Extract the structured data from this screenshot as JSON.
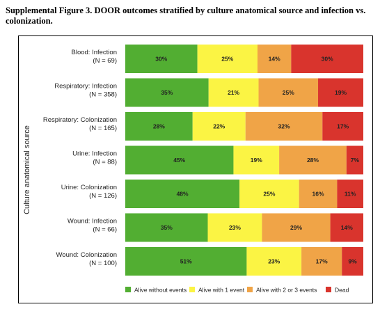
{
  "figure_title": "Supplemental Figure 3. DOOR outcomes stratified by culture anatomical source and infection vs. colonization.",
  "chart_data": {
    "type": "bar",
    "orientation": "horizontal",
    "stacked": true,
    "percent_stacked": true,
    "xlim": [
      0,
      100
    ],
    "ylabel": "Culture anatomical source",
    "legend_position": "bottom",
    "categories": [
      [
        "Blood: Infection",
        "(N = 69)"
      ],
      [
        "Respiratory: Infection",
        "(N = 358)"
      ],
      [
        "Respiratory: Colonization",
        "(N = 165)"
      ],
      [
        "Urine: Infection",
        "(N = 88)"
      ],
      [
        "Urine: Colonization",
        "(N = 126)"
      ],
      [
        "Wound: Infection",
        "(N = 66)"
      ],
      [
        "Wound: Colonization",
        "(N = 100)"
      ]
    ],
    "series": [
      {
        "name": "Alive without events",
        "color": "#52ae32",
        "values": [
          30,
          35,
          28,
          45,
          48,
          35,
          51
        ]
      },
      {
        "name": "Alive with 1 event",
        "color": "#fbf444",
        "values": [
          25,
          21,
          22,
          19,
          25,
          23,
          23
        ]
      },
      {
        "name": "Alive with 2 or 3 events",
        "color": "#f0a447",
        "values": [
          14,
          25,
          32,
          28,
          16,
          29,
          17
        ]
      },
      {
        "name": "Dead",
        "color": "#d9342d",
        "values": [
          30,
          19,
          17,
          7,
          11,
          14,
          9
        ]
      }
    ]
  }
}
